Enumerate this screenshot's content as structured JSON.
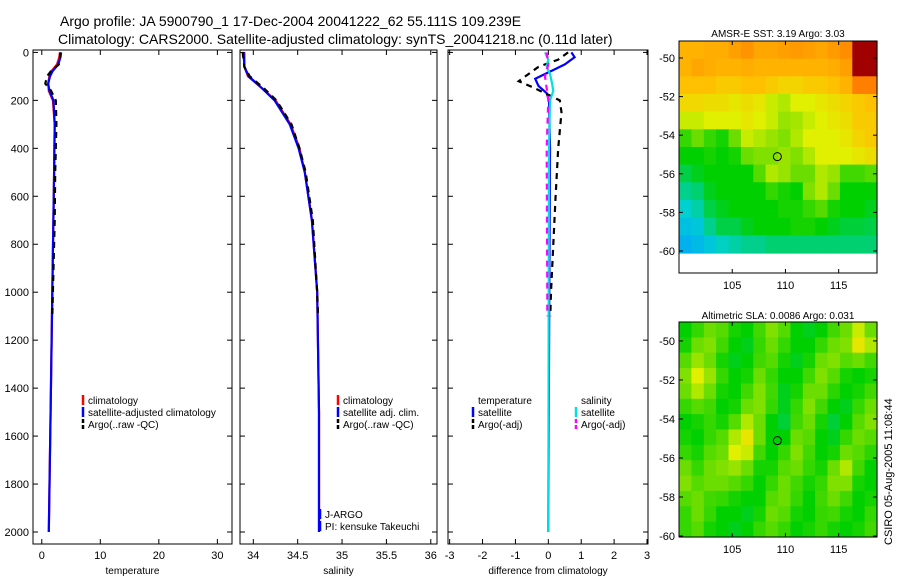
{
  "title": {
    "line1": "Argo profile: JA 5900790_1 17-Dec-2004 20041222_62 55.111S 109.239E",
    "line2": "Climatology: CARS2000. Satellite-adjusted climatology: synTS_20041218.nc (0.11d later)"
  },
  "footer": "CSIRO 05-Aug-2005 11:08:44",
  "colors": {
    "climatology": "#ff0000",
    "satellite": "#0000ff",
    "argo": "#000000",
    "sal_satellite": "#00e0e0",
    "sal_argo": "#ff00ff"
  },
  "chart_data": [
    {
      "type": "line",
      "xlabel": "temperature",
      "xlim": [
        -1.5,
        32.5
      ],
      "ylim": [
        -10,
        2050
      ],
      "xticks": [
        0,
        10,
        20,
        30
      ],
      "yticks": [
        0,
        200,
        400,
        600,
        800,
        1000,
        1200,
        1400,
        1600,
        1800,
        2000
      ],
      "legend": [
        "climatology",
        "satellite-adjusted climatology",
        "Argo(..raw -QC)"
      ],
      "series": [
        {
          "name": "climatology",
          "color": "#ff0000",
          "dash": false,
          "depth": [
            0,
            20,
            50,
            80,
            100,
            130,
            160,
            200,
            300,
            500,
            1000,
            1500,
            2000
          ],
          "values": [
            3.1,
            3.0,
            2.6,
            1.6,
            1.3,
            1.1,
            1.2,
            1.9,
            2.2,
            2.1,
            1.8,
            1.5,
            1.2
          ]
        },
        {
          "name": "satellite-adjusted climatology",
          "color": "#0000ff",
          "dash": false,
          "depth": [
            0,
            20,
            50,
            80,
            100,
            130,
            160,
            200,
            300,
            500,
            1000,
            1500,
            2000
          ],
          "values": [
            3.3,
            3.2,
            2.8,
            1.8,
            1.4,
            1.1,
            1.3,
            2.0,
            2.2,
            2.1,
            1.8,
            1.5,
            1.2
          ]
        },
        {
          "name": "Argo(..raw -QC)",
          "color": "#000000",
          "dash": true,
          "depth": [
            0,
            20,
            50,
            80,
            100,
            130,
            160,
            200,
            300,
            500,
            700,
            1000,
            1100
          ],
          "values": [
            3.2,
            3.1,
            2.9,
            1.5,
            0.9,
            0.6,
            1.6,
            2.4,
            2.5,
            2.3,
            2.2,
            1.9,
            1.8
          ]
        }
      ]
    },
    {
      "type": "line",
      "xlabel": "salinity",
      "xlim": [
        33.85,
        36.07
      ],
      "ylim": [
        -10,
        2050
      ],
      "xticks": [
        34,
        34.5,
        35,
        35.5,
        36
      ],
      "legend": [
        "climatology",
        "satellite adj. clim.",
        "Argo(..raw -QC)"
      ],
      "annotation": [
        "J-ARGO",
        "PI: kensuke Takeuchi"
      ],
      "series": [
        {
          "name": "climatology",
          "color": "#ff0000",
          "dash": false,
          "depth": [
            0,
            60,
            100,
            150,
            200,
            300,
            400,
            500,
            700,
            1000,
            1500,
            2000
          ],
          "values": [
            33.9,
            33.9,
            33.94,
            34.1,
            34.25,
            34.42,
            34.52,
            34.58,
            34.66,
            34.72,
            34.74,
            34.74
          ]
        },
        {
          "name": "satellite adj. clim.",
          "color": "#0000ff",
          "dash": false,
          "depth": [
            0,
            60,
            100,
            150,
            200,
            300,
            400,
            500,
            700,
            1000,
            1500,
            2000
          ],
          "values": [
            33.89,
            33.9,
            33.95,
            34.1,
            34.24,
            34.41,
            34.51,
            34.58,
            34.66,
            34.72,
            34.74,
            34.74
          ]
        },
        {
          "name": "Argo(..raw -QC)",
          "color": "#000000",
          "dash": true,
          "depth": [
            0,
            60,
            100,
            150,
            200,
            300,
            400,
            500,
            700,
            1000,
            1100
          ],
          "values": [
            33.88,
            33.9,
            33.96,
            34.12,
            34.26,
            34.43,
            34.52,
            34.59,
            34.67,
            34.72,
            34.73
          ]
        }
      ]
    },
    {
      "type": "line",
      "xlabel": "difference from climatology",
      "xlim": [
        -3.05,
        3.03
      ],
      "ylim": [
        -10,
        2050
      ],
      "xticks": [
        -3,
        -2,
        -1,
        0,
        1,
        2,
        3
      ],
      "legend_temperature": [
        "temperature",
        "satellite",
        "Argo(-adj)"
      ],
      "legend_salinity": [
        "salinity",
        "satellite",
        "Argo(-adj)"
      ],
      "series": [
        {
          "name": "temperature satellite",
          "color": "#0000ff",
          "dash": false,
          "depth": [
            0,
            20,
            50,
            70,
            90,
            110,
            140,
            170,
            200,
            400,
            1000,
            2000
          ],
          "values": [
            0.7,
            0.8,
            0.5,
            0.2,
            -0.1,
            -0.4,
            -0.3,
            -0.05,
            0.02,
            0.05,
            0.03,
            0.0
          ]
        },
        {
          "name": "temperature Argo(-adj)",
          "color": "#000000",
          "dash": true,
          "depth": [
            0,
            30,
            60,
            90,
            120,
            150,
            200,
            250,
            400,
            600,
            800,
            1000,
            1100
          ],
          "values": [
            0.6,
            0.3,
            -0.3,
            -0.6,
            -0.9,
            -0.4,
            0.35,
            0.4,
            0.3,
            0.22,
            0.15,
            0.08,
            0.06
          ]
        },
        {
          "name": "salinity satellite",
          "color": "#00e0e0",
          "dash": false,
          "depth": [
            0,
            30,
            60,
            90,
            120,
            160,
            200,
            400,
            1000,
            2000
          ],
          "values": [
            -0.1,
            0.0,
            -0.05,
            0.05,
            0.1,
            0.15,
            0.05,
            0.02,
            0.01,
            0.0
          ]
        },
        {
          "name": "salinity Argo(-adj)",
          "color": "#ff00ff",
          "dash": true,
          "depth": [
            0,
            50,
            100,
            150,
            200,
            400,
            1000,
            1100
          ],
          "values": [
            -0.05,
            0.0,
            -0.1,
            -0.05,
            0.0,
            -0.05,
            -0.03,
            -0.03
          ]
        }
      ]
    },
    {
      "type": "heatmap",
      "title": "AMSR-E SST: 3.19 Argo: 3.03",
      "xlim": [
        100.0,
        118.6
      ],
      "ylim": [
        -61.14,
        -49.12
      ],
      "xticks": [
        105,
        110,
        115
      ],
      "yticks": [
        -50,
        -52,
        -54,
        -56,
        -58,
        -60
      ],
      "data_lat_range": [
        -60.1,
        -49.12
      ],
      "argo_point": [
        109.239,
        -55.111
      ],
      "values": [
        [
          0.82,
          0.82,
          0.83,
          0.83,
          0.85,
          0.87,
          0.84,
          0.84,
          0.85,
          0.86,
          0.85,
          0.84,
          0.86,
          0.88,
          1,
          1
        ],
        [
          0.82,
          0.84,
          0.83,
          0.82,
          0.82,
          0.83,
          0.82,
          0.82,
          0.82,
          0.82,
          0.82,
          0.82,
          0.83,
          0.85,
          1,
          1
        ],
        [
          0.8,
          0.8,
          0.8,
          0.78,
          0.78,
          0.8,
          0.8,
          0.78,
          0.76,
          0.76,
          0.78,
          0.78,
          0.8,
          0.82,
          0.9,
          0.9
        ],
        [
          0.75,
          0.75,
          0.74,
          0.74,
          0.72,
          0.74,
          0.72,
          0.68,
          0.66,
          0.7,
          0.7,
          0.72,
          0.74,
          0.76,
          0.78,
          0.8
        ],
        [
          0.68,
          0.68,
          0.7,
          0.7,
          0.7,
          0.72,
          0.7,
          0.68,
          0.64,
          0.65,
          0.68,
          0.7,
          0.72,
          0.74,
          0.78,
          0.78
        ],
        [
          0.55,
          0.6,
          0.55,
          0.52,
          0.6,
          0.68,
          0.66,
          0.64,
          0.62,
          0.66,
          0.7,
          0.7,
          0.7,
          0.72,
          0.76,
          0.78
        ],
        [
          0.5,
          0.5,
          0.52,
          0.5,
          0.52,
          0.6,
          0.62,
          0.62,
          0.64,
          0.62,
          0.66,
          0.7,
          0.7,
          0.7,
          0.72,
          0.74
        ],
        [
          0.45,
          0.48,
          0.5,
          0.5,
          0.5,
          0.5,
          0.58,
          0.66,
          0.64,
          0.6,
          0.6,
          0.66,
          0.64,
          0.56,
          0.56,
          0.58
        ],
        [
          0.4,
          0.42,
          0.48,
          0.5,
          0.5,
          0.5,
          0.5,
          0.55,
          0.52,
          0.5,
          0.62,
          0.66,
          0.6,
          0.5,
          0.5,
          0.5
        ],
        [
          0.35,
          0.38,
          0.45,
          0.48,
          0.5,
          0.5,
          0.5,
          0.5,
          0.52,
          0.52,
          0.55,
          0.58,
          0.52,
          0.5,
          0.5,
          0.48
        ],
        [
          0.3,
          0.32,
          0.4,
          0.45,
          0.45,
          0.48,
          0.5,
          0.5,
          0.5,
          0.52,
          0.52,
          0.5,
          0.48,
          0.46,
          0.46,
          0.45
        ],
        [
          0.25,
          0.28,
          0.32,
          0.36,
          0.38,
          0.4,
          0.4,
          0.42,
          0.42,
          0.42,
          0.42,
          0.42,
          0.42,
          0.42,
          0.42,
          0.42
        ]
      ]
    },
    {
      "type": "heatmap",
      "title": "Altimetric SLA: 0.0086 Argo: 0.031",
      "xlim": [
        100.0,
        118.6
      ],
      "ylim": [
        -60.05,
        -49.03
      ],
      "xticks": [
        105,
        110,
        115
      ],
      "yticks": [
        -50,
        -52,
        -54,
        -56,
        -58,
        -60
      ],
      "data_lat_range": [
        -60.05,
        -49.03
      ],
      "argo_point": [
        109.239,
        -55.111
      ],
      "values": [
        [
          0.5,
          0.55,
          0.6,
          0.58,
          0.52,
          0.5,
          0.56,
          0.62,
          0.58,
          0.5,
          0.48,
          0.5,
          0.56,
          0.6,
          0.68,
          0.6
        ],
        [
          0.52,
          0.6,
          0.62,
          0.56,
          0.5,
          0.48,
          0.55,
          0.6,
          0.55,
          0.5,
          0.5,
          0.55,
          0.6,
          0.62,
          0.72,
          0.66
        ],
        [
          0.58,
          0.64,
          0.6,
          0.52,
          0.48,
          0.5,
          0.56,
          0.58,
          0.52,
          0.48,
          0.52,
          0.6,
          0.62,
          0.58,
          0.6,
          0.56
        ],
        [
          0.62,
          0.7,
          0.64,
          0.55,
          0.5,
          0.52,
          0.6,
          0.55,
          0.5,
          0.5,
          0.56,
          0.62,
          0.58,
          0.52,
          0.5,
          0.52
        ],
        [
          0.6,
          0.66,
          0.6,
          0.52,
          0.5,
          0.56,
          0.62,
          0.56,
          0.48,
          0.52,
          0.6,
          0.6,
          0.54,
          0.5,
          0.52,
          0.56
        ],
        [
          0.55,
          0.58,
          0.56,
          0.5,
          0.52,
          0.6,
          0.62,
          0.55,
          0.48,
          0.55,
          0.62,
          0.56,
          0.5,
          0.48,
          0.55,
          0.6
        ],
        [
          0.5,
          0.52,
          0.55,
          0.52,
          0.58,
          0.66,
          0.6,
          0.5,
          0.46,
          0.56,
          0.6,
          0.52,
          0.46,
          0.5,
          0.58,
          0.62
        ],
        [
          0.52,
          0.5,
          0.55,
          0.58,
          0.66,
          0.72,
          0.6,
          0.5,
          0.5,
          0.6,
          0.58,
          0.5,
          0.48,
          0.55,
          0.6,
          0.58
        ],
        [
          0.55,
          0.52,
          0.58,
          0.6,
          0.7,
          0.68,
          0.56,
          0.5,
          0.55,
          0.62,
          0.56,
          0.5,
          0.52,
          0.6,
          0.58,
          0.54
        ],
        [
          0.6,
          0.55,
          0.6,
          0.62,
          0.64,
          0.6,
          0.52,
          0.52,
          0.58,
          0.6,
          0.55,
          0.52,
          0.6,
          0.66,
          0.56,
          0.5
        ],
        [
          0.62,
          0.58,
          0.6,
          0.6,
          0.58,
          0.55,
          0.5,
          0.55,
          0.6,
          0.56,
          0.52,
          0.55,
          0.62,
          0.62,
          0.52,
          0.5
        ],
        [
          0.58,
          0.6,
          0.56,
          0.55,
          0.52,
          0.5,
          0.5,
          0.58,
          0.6,
          0.55,
          0.5,
          0.56,
          0.6,
          0.56,
          0.5,
          0.52
        ],
        [
          0.55,
          0.6,
          0.55,
          0.5,
          0.5,
          0.48,
          0.52,
          0.6,
          0.58,
          0.52,
          0.5,
          0.55,
          0.56,
          0.52,
          0.5,
          0.55
        ],
        [
          0.55,
          0.58,
          0.52,
          0.5,
          0.48,
          0.5,
          0.55,
          0.58,
          0.55,
          0.5,
          0.52,
          0.55,
          0.52,
          0.5,
          0.52,
          0.56
        ]
      ]
    }
  ]
}
